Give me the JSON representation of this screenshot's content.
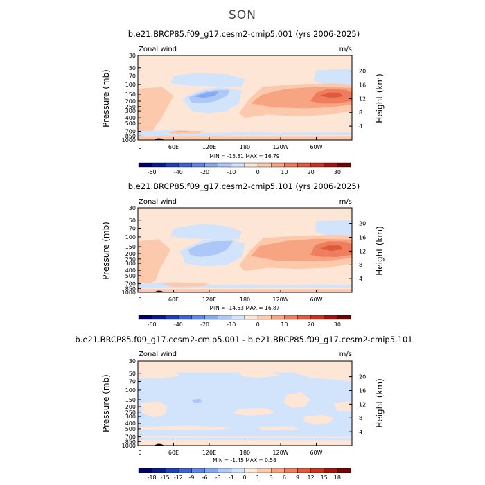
{
  "title": "SON",
  "chart_data": [
    {
      "type": "contour",
      "title": "b.e21.BRCP85.f09_g17.cesm2-cmip5.001 (yrs 2006-2025)",
      "variable_label": "Zonal wind",
      "units": "m/s",
      "ylabel": "Pressure (mb)",
      "y2label": "Height (km)",
      "pressure_ticks": [
        30,
        50,
        70,
        100,
        150,
        200,
        250,
        300,
        400,
        500,
        700,
        850,
        1000
      ],
      "height_ticks": [
        4,
        8,
        12,
        16,
        20
      ],
      "lon_ticks": [
        "0",
        "60E",
        "120E",
        "180",
        "120W",
        "60W"
      ],
      "min": -15.81,
      "max": 16.79,
      "minmax_text": "MIN = -15.81   MAX =  16.79",
      "colorbar_labels": [
        "-60",
        "-40",
        "-20",
        "-10",
        "0",
        "10",
        "20",
        "30"
      ],
      "colorbar_colors": [
        "#000066",
        "#0a1a8c",
        "#1f3fb4",
        "#3c63d2",
        "#5d86e6",
        "#86a9f2",
        "#adc8f8",
        "#d2e3fc",
        "#fde6d6",
        "#fcc9ac",
        "#f7a483",
        "#ef7e5e",
        "#e05a3c",
        "#c8341f",
        "#a01510",
        "#6e0606"
      ],
      "features": [
        {
          "kind": "positive-jet",
          "label": "NH/Tropical westerly jet near 150 mb, 60W",
          "peak": 16.79
        },
        {
          "kind": "negative",
          "label": "Easterly region near 150 mb, 90E-150E",
          "min": -15.81
        }
      ]
    },
    {
      "type": "contour",
      "title": "b.e21.BRCP85.f09_g17.cesm2-cmip5.101 (yrs 2006-2025)",
      "variable_label": "Zonal wind",
      "units": "m/s",
      "ylabel": "Pressure (mb)",
      "y2label": "Height (km)",
      "pressure_ticks": [
        30,
        50,
        70,
        100,
        150,
        200,
        250,
        300,
        400,
        500,
        700,
        850,
        1000
      ],
      "height_ticks": [
        4,
        8,
        12,
        16,
        20
      ],
      "lon_ticks": [
        "0",
        "60E",
        "120E",
        "180",
        "120W",
        "60W"
      ],
      "min": -14.53,
      "max": 16.87,
      "minmax_text": "MIN = -14.53   MAX =  16.87",
      "colorbar_labels": [
        "-60",
        "-40",
        "-20",
        "-10",
        "0",
        "10",
        "20",
        "30"
      ],
      "colorbar_colors": [
        "#000066",
        "#0a1a8c",
        "#1f3fb4",
        "#3c63d2",
        "#5d86e6",
        "#86a9f2",
        "#adc8f8",
        "#d2e3fc",
        "#fde6d6",
        "#fcc9ac",
        "#f7a483",
        "#ef7e5e",
        "#e05a3c",
        "#c8341f",
        "#a01510",
        "#6e0606"
      ],
      "features": [
        {
          "kind": "positive-jet",
          "label": "Westerly jet near 150 mb, 60W",
          "peak": 16.87
        },
        {
          "kind": "negative",
          "label": "Easterly region near 150 mb, 90E-150E",
          "min": -14.53
        }
      ]
    },
    {
      "type": "contour",
      "title": "b.e21.BRCP85.f09_g17.cesm2-cmip5.001 - b.e21.BRCP85.f09_g17.cesm2-cmip5.101",
      "variable_label": "Zonal wind",
      "units": "m/s",
      "ylabel": "Pressure (mb)",
      "y2label": "Height (km)",
      "pressure_ticks": [
        30,
        50,
        70,
        100,
        150,
        200,
        250,
        300,
        400,
        500,
        700,
        850,
        1000
      ],
      "height_ticks": [
        4,
        8,
        12,
        16,
        20
      ],
      "lon_ticks": [
        "0",
        "60E",
        "120E",
        "180",
        "120W",
        "60W"
      ],
      "min": -1.45,
      "max": 0.58,
      "minmax_text": "MIN =  -1.45   MAX =   0.58",
      "colorbar_labels": [
        "-18",
        "-15",
        "-12",
        "-9",
        "-6",
        "-3",
        "-1",
        "0",
        "1",
        "3",
        "6",
        "9",
        "12",
        "15",
        "18"
      ],
      "colorbar_colors": [
        "#000066",
        "#0a1a8c",
        "#1f3fb4",
        "#3c63d2",
        "#5d86e6",
        "#86a9f2",
        "#adc8f8",
        "#d2e3fc",
        "#fde6d6",
        "#fcc9ac",
        "#f7a483",
        "#ef7e5e",
        "#e05a3c",
        "#c8341f",
        "#a01510",
        "#6e0606"
      ],
      "features": [
        {
          "kind": "difference",
          "label": "Mostly weak negative difference with scattered positive patches"
        }
      ]
    }
  ]
}
